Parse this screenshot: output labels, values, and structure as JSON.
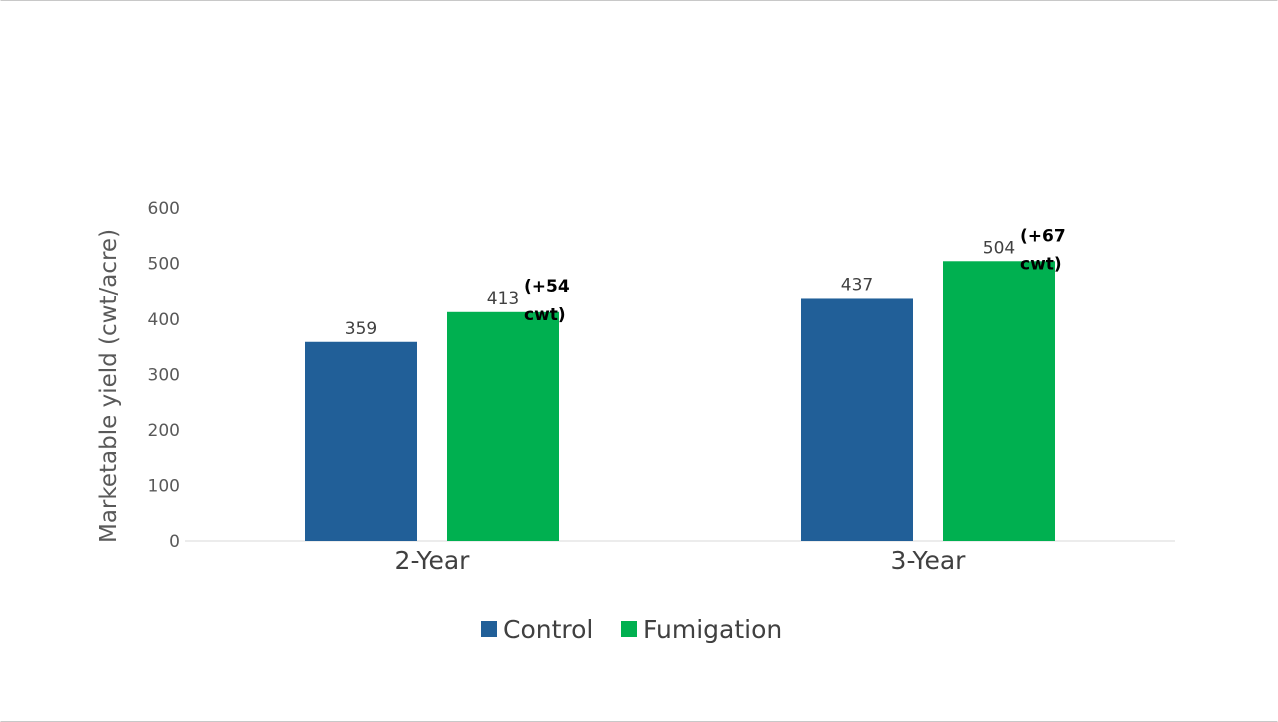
{
  "chart_data": {
    "type": "bar",
    "title": "",
    "xlabel": "",
    "ylabel": "Marketable yield (cwt/acre)",
    "ylim": [
      0,
      600
    ],
    "yticks": [
      "0",
      "100",
      "200",
      "300",
      "400",
      "500",
      "600"
    ],
    "categories": [
      "2-Year",
      "3-Year"
    ],
    "series": [
      {
        "name": "Control",
        "color": "#215F98",
        "values": [
          359,
          437
        ]
      },
      {
        "name": "Fumigation",
        "color": "#00B050",
        "values": [
          413,
          504
        ]
      }
    ],
    "annotations": [
      {
        "category": "2-Year",
        "series": "Fumigation",
        "lines": [
          "(+54",
          "cwt)"
        ]
      },
      {
        "category": "3-Year",
        "series": "Fumigation",
        "lines": [
          "(+67",
          "cwt)"
        ]
      }
    ],
    "grid": false,
    "legend": "bottom"
  }
}
